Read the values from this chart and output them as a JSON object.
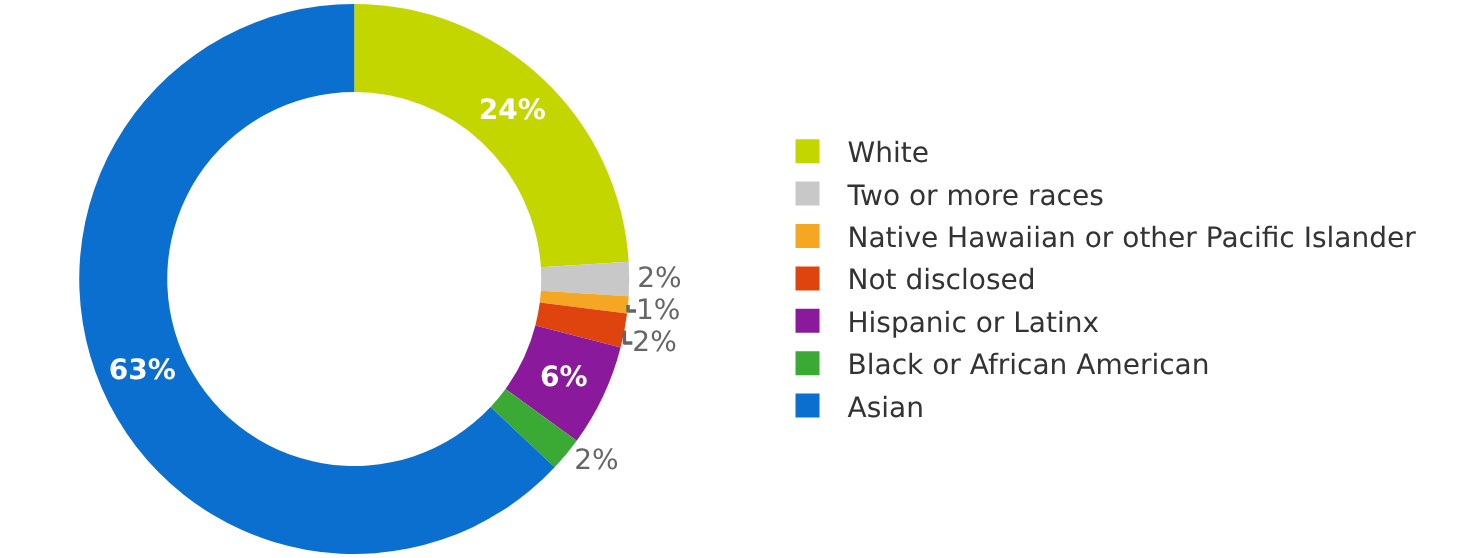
{
  "chart_data": {
    "type": "donut",
    "categories": [
      "White",
      "Two or more races",
      "Native Hawaiian or other Pacific Islander",
      "Not disclosed",
      "Hispanic or Latinx",
      "Black or African American",
      "Asian"
    ],
    "values": [
      24,
      2,
      1,
      2,
      6,
      2,
      63
    ],
    "value_labels": [
      "24%",
      "2%",
      "1%",
      "2%",
      "6%",
      "2%",
      "63%"
    ],
    "colors": [
      "#c4d600",
      "#c8c8c8",
      "#f5a623",
      "#e0440e",
      "#8a1a9b",
      "#3aaa35",
      "#0a6fcf"
    ],
    "legend": "right"
  }
}
